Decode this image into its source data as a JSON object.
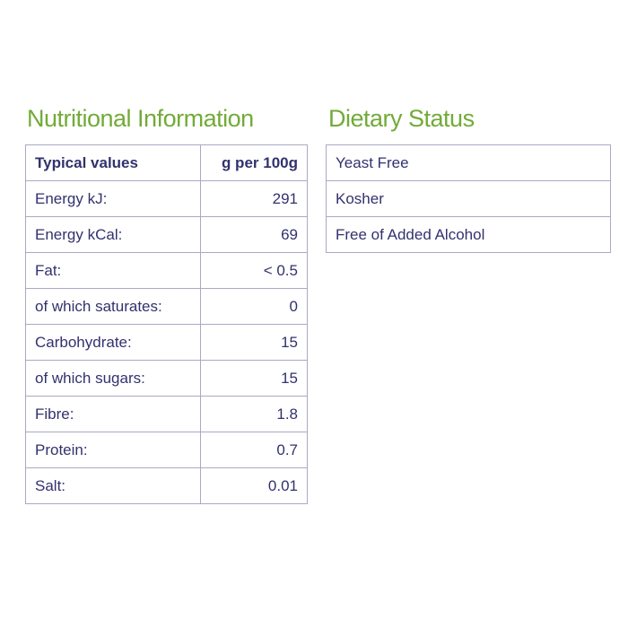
{
  "colors": {
    "heading_green": "#72ab38",
    "text_navy": "#32326e",
    "table_border": "#a9a9c6",
    "background": "#ffffff"
  },
  "nutrition": {
    "title": "Nutritional Information",
    "header": {
      "label": "Typical values",
      "value": "g per 100g"
    },
    "rows": [
      {
        "label": "Energy kJ:",
        "value": "291"
      },
      {
        "label": "Energy kCal:",
        "value": "69"
      },
      {
        "label": "Fat:",
        "value": "< 0.5"
      },
      {
        "label": "of which saturates:",
        "value": "0"
      },
      {
        "label": "Carbohydrate:",
        "value": "15"
      },
      {
        "label": "of which sugars:",
        "value": "15"
      },
      {
        "label": "Fibre:",
        "value": "1.8"
      },
      {
        "label": "Protein:",
        "value": "0.7"
      },
      {
        "label": "Salt:",
        "value": "0.01"
      }
    ]
  },
  "dietary": {
    "title": "Dietary Status",
    "items": [
      {
        "label": "Yeast Free"
      },
      {
        "label": "Kosher"
      },
      {
        "label": "Free of Added Alcohol"
      }
    ]
  }
}
